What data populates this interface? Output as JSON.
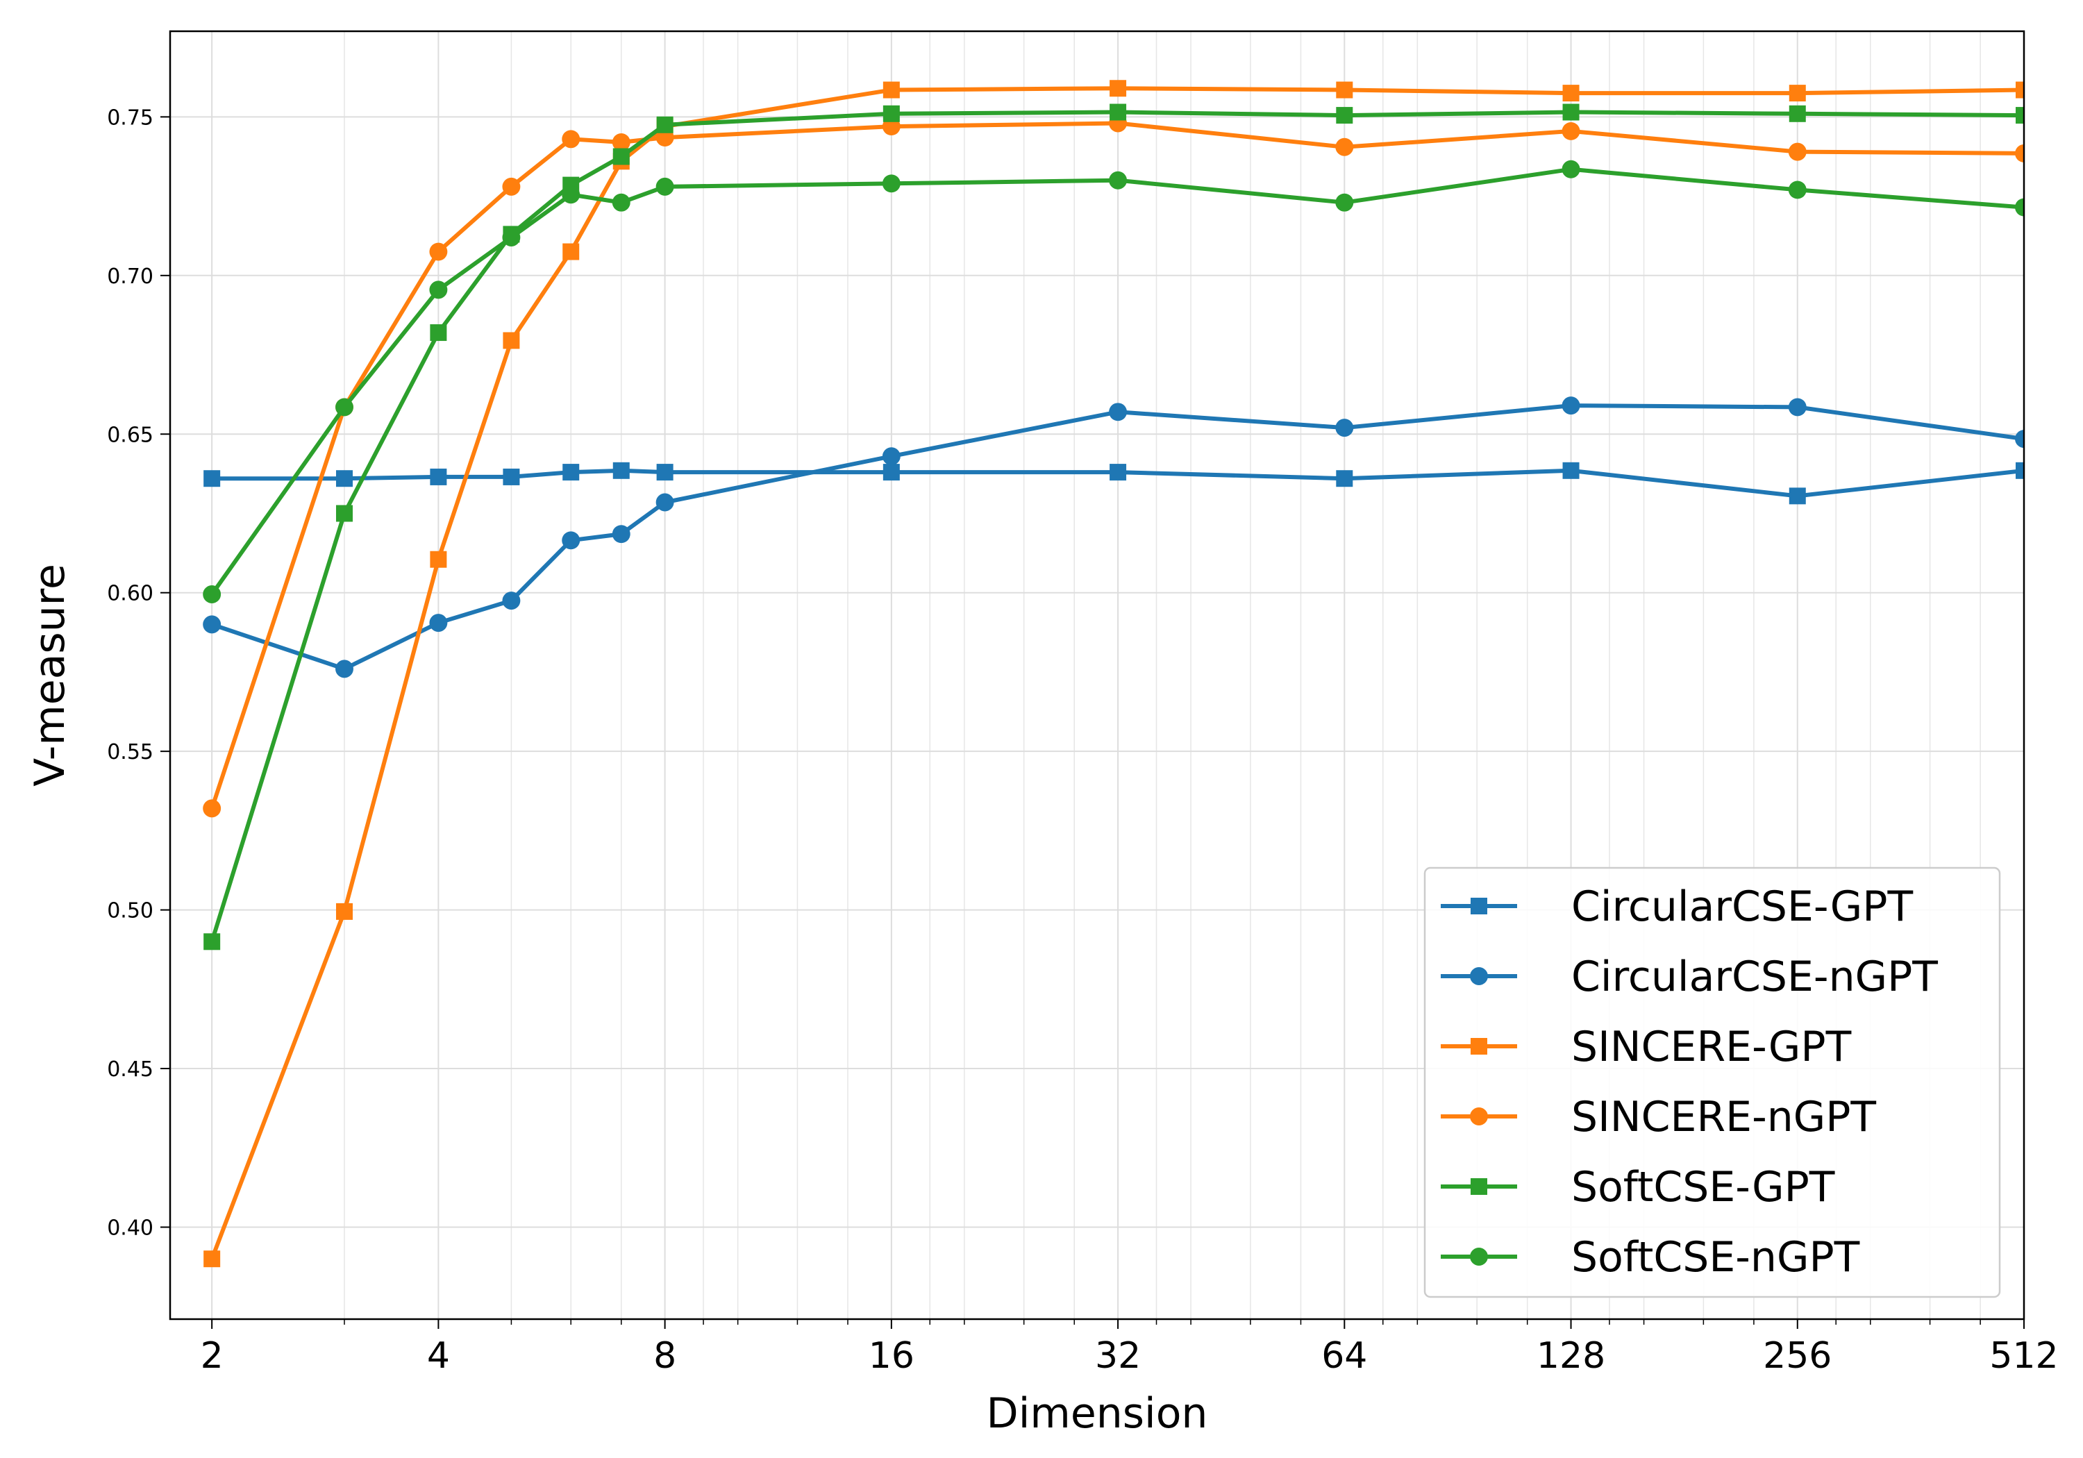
{
  "chart_data": {
    "type": "line",
    "title": "",
    "xlabel": "Dimension",
    "ylabel": "V-measure",
    "x_scale": "log2",
    "xlim": [
      1.76,
      512
    ],
    "ylim": [
      0.371,
      0.777
    ],
    "x_ticks": [
      2,
      4,
      8,
      16,
      32,
      64,
      128,
      256,
      512
    ],
    "x_tick_labels": [
      "2",
      "4",
      "8",
      "16",
      "32",
      "64",
      "128",
      "256",
      "512"
    ],
    "y_ticks": [
      0.4,
      0.45,
      0.5,
      0.55,
      0.6,
      0.65,
      0.7,
      0.75
    ],
    "y_tick_labels": [
      "0.40",
      "0.45",
      "0.50",
      "0.55",
      "0.60",
      "0.65",
      "0.70",
      "0.75"
    ],
    "grid": true,
    "legend_position": "bottom-right",
    "x": [
      2,
      3,
      4,
      5,
      6,
      7,
      8,
      16,
      32,
      64,
      128,
      256,
      512
    ],
    "series": [
      {
        "name": "CircularCSE-GPT",
        "color": "#1f77b4",
        "marker": "square",
        "values": [
          0.636,
          0.636,
          0.6365,
          0.6365,
          0.638,
          0.6385,
          0.638,
          0.638,
          0.638,
          0.636,
          0.6385,
          0.6305,
          0.6385
        ]
      },
      {
        "name": "CircularCSE-nGPT",
        "color": "#1f77b4",
        "marker": "circle",
        "values": [
          0.59,
          0.576,
          0.5905,
          0.5975,
          0.6165,
          0.6185,
          0.6285,
          0.643,
          0.657,
          0.652,
          0.659,
          0.6585,
          0.6485
        ]
      },
      {
        "name": "SINCERE-GPT",
        "color": "#ff7f0e",
        "marker": "square",
        "values": [
          0.39,
          0.4995,
          0.6105,
          0.6795,
          0.7075,
          0.736,
          0.747,
          0.7585,
          0.759,
          0.7585,
          0.7575,
          0.7575,
          0.7585
        ]
      },
      {
        "name": "SINCERE-nGPT",
        "color": "#ff7f0e",
        "marker": "circle",
        "values": [
          0.532,
          0.6585,
          0.7075,
          0.728,
          0.743,
          0.742,
          0.7435,
          0.747,
          0.748,
          0.7405,
          0.7455,
          0.739,
          0.7385
        ]
      },
      {
        "name": "SoftCSE-GPT",
        "color": "#2ca02c",
        "marker": "square",
        "values": [
          0.49,
          0.625,
          0.682,
          0.713,
          0.7285,
          0.7375,
          0.7475,
          0.751,
          0.7515,
          0.7505,
          0.7515,
          0.751,
          0.7505
        ]
      },
      {
        "name": "SoftCSE-nGPT",
        "color": "#2ca02c",
        "marker": "circle",
        "values": [
          0.5995,
          0.6585,
          0.6955,
          0.712,
          0.7255,
          0.723,
          0.728,
          0.729,
          0.73,
          0.723,
          0.7335,
          0.727,
          0.7215
        ]
      }
    ]
  }
}
